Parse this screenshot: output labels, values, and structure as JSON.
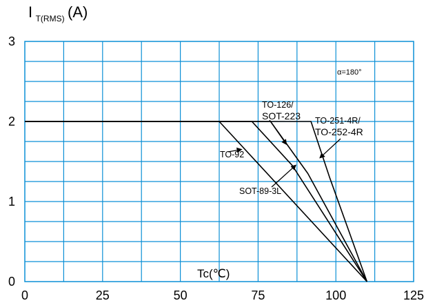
{
  "chart_data": {
    "type": "line",
    "ylabel_main": "I",
    "ylabel_sub": "T(RMS)",
    "ylabel_unit": "(A)",
    "xlabel": "Tc(℃)",
    "xlim": [
      0,
      125
    ],
    "ylim": [
      0,
      3
    ],
    "x_ticks": [
      "0",
      "25",
      "50",
      "75",
      "100",
      "125"
    ],
    "y_ticks": [
      "0",
      "1",
      "2",
      "3"
    ],
    "grid": true,
    "grid_color": "#0a8fd6",
    "condition": "α=180°",
    "series": [
      {
        "name": "TO-92",
        "x": [
          0,
          62.5,
          110
        ],
        "y": [
          2,
          2,
          0
        ]
      },
      {
        "name": "SOT-89-3L",
        "x": [
          0,
          73,
          86,
          110
        ],
        "y": [
          2,
          2,
          1.45,
          0
        ]
      },
      {
        "name": "TO-126/SOT-223",
        "x": [
          0,
          79,
          91,
          110
        ],
        "y": [
          2,
          2,
          1.35,
          0
        ]
      },
      {
        "name": "TO-251-4R/TO-252-4R",
        "x": [
          0,
          92,
          98,
          110
        ],
        "y": [
          2,
          2,
          1.3,
          0
        ]
      }
    ],
    "annotations": [
      {
        "lines": [
          "TO-92"
        ],
        "arrow_to": [
          69.5,
          1.65
        ]
      },
      {
        "lines": [
          "SOT-89-3L"
        ],
        "arrow_to": [
          87,
          1.45
        ]
      },
      {
        "lines": [
          "TO-126/",
          "SOT-223"
        ],
        "arrow_to": [
          84,
          1.72
        ]
      },
      {
        "lines": [
          "TO-251-4R/",
          "TO-252-4R"
        ],
        "arrow_to": [
          95,
          1.55
        ]
      }
    ]
  }
}
